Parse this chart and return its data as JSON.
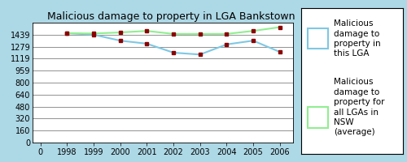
{
  "title": "Malicious damage to property in LGA Bankstown",
  "years": [
    1998,
    1999,
    2000,
    2001,
    2002,
    2003,
    2004,
    2005,
    2006
  ],
  "x_indices": [
    1,
    2,
    3,
    4,
    5,
    6,
    7,
    8,
    9
  ],
  "bankstown": [
    1460,
    1440,
    1360,
    1320,
    1200,
    1175,
    1310,
    1360,
    1210
  ],
  "nsw_avg": [
    1460,
    1455,
    1470,
    1490,
    1450,
    1450,
    1450,
    1490,
    1540
  ],
  "yticks": [
    0,
    160,
    320,
    480,
    640,
    800,
    959,
    1119,
    1279,
    1439
  ],
  "xtick_positions": [
    0,
    1,
    2,
    3,
    4,
    5,
    6,
    7,
    8,
    9
  ],
  "xtick_labels": [
    "0",
    "1998",
    "1999",
    "2000",
    "2001",
    "2002",
    "2003",
    "2004",
    "2005",
    "2006"
  ],
  "color_blue": "#7EC8E3",
  "color_green": "#90EE90",
  "marker_color": "#8B0000",
  "bg_outer": "#ADD8E6",
  "bg_plot": "#FFFFFF",
  "bg_legend": "#FFFFFF",
  "legend_label_blue": "Malicious\ndamage to\nproperty in\nthis LGA",
  "legend_label_green": "Malicious\ndamage to\nproperty for\nall LGAs in\nNSW\n(average)",
  "title_fontsize": 9,
  "tick_fontsize": 7,
  "legend_fontsize": 7.5,
  "ylim_max": 1600,
  "xlim_min": -0.3,
  "xlim_max": 9.5
}
